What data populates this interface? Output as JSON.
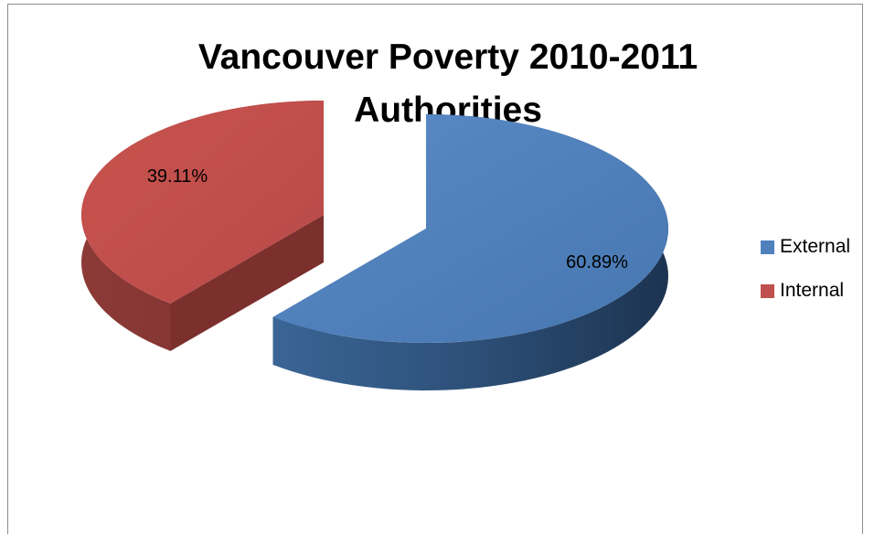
{
  "chart_data": {
    "type": "pie",
    "title": "Vancouver Poverty 2010-2011",
    "subtitle": "Authorities",
    "three_d": true,
    "exploded": true,
    "slices": [
      {
        "label": "External",
        "value": 60.89,
        "display": "60.89%",
        "color": "#4f81bd"
      },
      {
        "label": "Internal",
        "value": 39.11,
        "display": "39.11%",
        "color": "#c0504d"
      }
    ],
    "legend": {
      "position": "right",
      "entries": [
        "External",
        "Internal"
      ]
    }
  }
}
